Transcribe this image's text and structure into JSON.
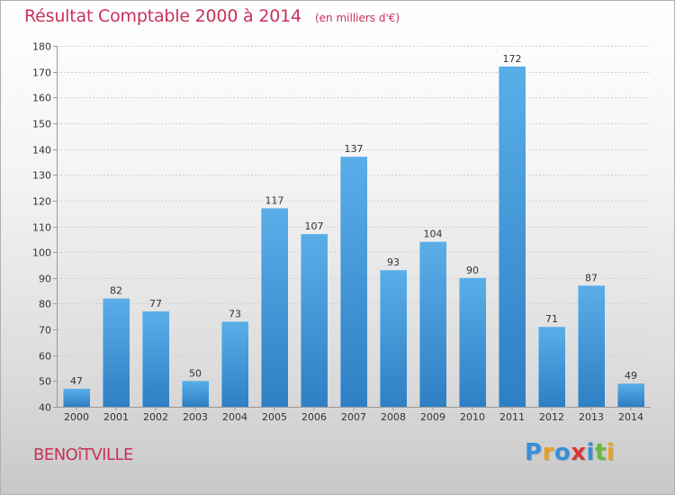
{
  "header": {
    "title": "Résultat Comptable 2000 à 2014",
    "unit": "(en milliers d'€)"
  },
  "footer": {
    "commune": "BENOîTVILLE",
    "logo": "Proxiti"
  },
  "colors": {
    "title": "#c8315a",
    "bar_top": "#5aaee8",
    "bar_bottom": "#2e7fc4",
    "grid": "#d0d0d0",
    "logo_letters": [
      "#3a8fd8",
      "#e8a020",
      "#3a8fd8",
      "#d83838",
      "#3a8fd8",
      "#6ab840",
      "#e8a020"
    ]
  },
  "chart_data": {
    "type": "bar",
    "title": "Résultat Comptable 2000 à 2014",
    "ylabel": "(en milliers d'€)",
    "xlabel": "",
    "categories": [
      "2000",
      "2001",
      "2002",
      "2003",
      "2004",
      "2005",
      "2006",
      "2007",
      "2008",
      "2009",
      "2010",
      "2011",
      "2012",
      "2013",
      "2014"
    ],
    "values": [
      47,
      82,
      77,
      50,
      73,
      117,
      107,
      137,
      93,
      104,
      90,
      172,
      71,
      87,
      49
    ],
    "ylim": [
      40,
      180
    ],
    "yticks": [
      40,
      50,
      60,
      70,
      80,
      90,
      100,
      110,
      120,
      130,
      140,
      150,
      160,
      170,
      180
    ],
    "grid": true
  }
}
